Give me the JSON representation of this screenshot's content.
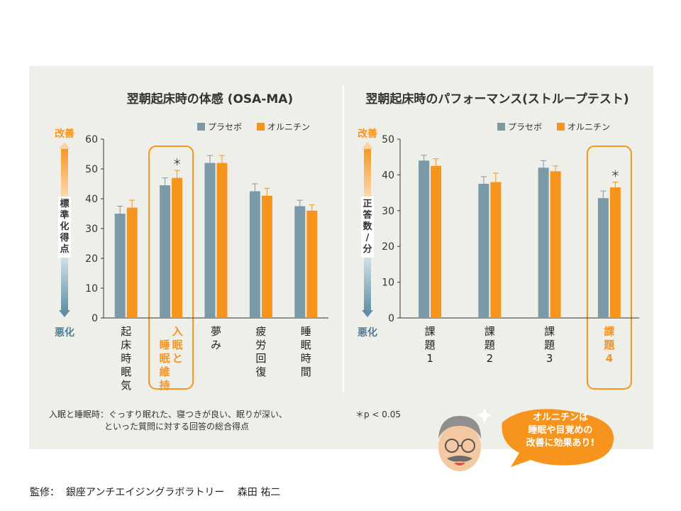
{
  "colors": {
    "placebo": "#7b9aa8",
    "ornithine": "#f7941d",
    "axis": "#333333",
    "highlight": "#f7941d"
  },
  "chart_data": [
    {
      "type": "bar",
      "title": "翌朝起床時の体感 (OSA-MA)",
      "ylabel": "標準化得点",
      "top_label": "改善",
      "bottom_label": "悪化",
      "ylim": [
        0,
        60
      ],
      "yticks": [
        0,
        10,
        20,
        30,
        40,
        50,
        60
      ],
      "categories": [
        "起床時眠気",
        "入眠と睡眠維持",
        "夢み",
        "疲労回復",
        "睡眠時間"
      ],
      "highlight_index": 1,
      "significant": [
        1
      ],
      "series": [
        {
          "name": "プラセボ",
          "values": [
            35,
            44.5,
            52,
            42.5,
            37.5
          ],
          "errors": [
            2.5,
            2.5,
            2.5,
            2.5,
            2
          ]
        },
        {
          "name": "オルニチン",
          "values": [
            37,
            47,
            52,
            41,
            36
          ],
          "errors": [
            2.5,
            2.5,
            2.5,
            2.5,
            2
          ]
        }
      ]
    },
    {
      "type": "bar",
      "title": "翌朝起床時のパフォーマンス(ストループテスト)",
      "ylabel": "正答数/分",
      "top_label": "改善",
      "bottom_label": "悪化",
      "ylim": [
        0,
        50
      ],
      "yticks": [
        0,
        10,
        20,
        30,
        40,
        50
      ],
      "categories": [
        "課題1",
        "課題2",
        "課題3",
        "課題4"
      ],
      "highlight_index": 3,
      "significant": [
        3
      ],
      "series": [
        {
          "name": "プラセボ",
          "values": [
            44,
            37.5,
            42,
            33.5
          ],
          "errors": [
            1.5,
            2,
            2,
            2
          ]
        },
        {
          "name": "オルニチン",
          "values": [
            42.5,
            38,
            41,
            36.5
          ],
          "errors": [
            2,
            2.5,
            1.5,
            1.5
          ]
        }
      ]
    }
  ],
  "significance_mark": "＊",
  "note": {
    "line1": "入眠と睡眠時：ぐっすり眠れた、寝つきが良い、眠りが深い、",
    "line2": "といった質問に対する回答の総合得点",
    "pvalue": "＊p < 0.05"
  },
  "bubble": {
    "line1": "オルニチンは",
    "line2": "睡眠や目覚めの",
    "line3": "改善に効果あり!"
  },
  "footer": "監修：  銀座アンチエイジングラボラトリー　 森田 祐二"
}
